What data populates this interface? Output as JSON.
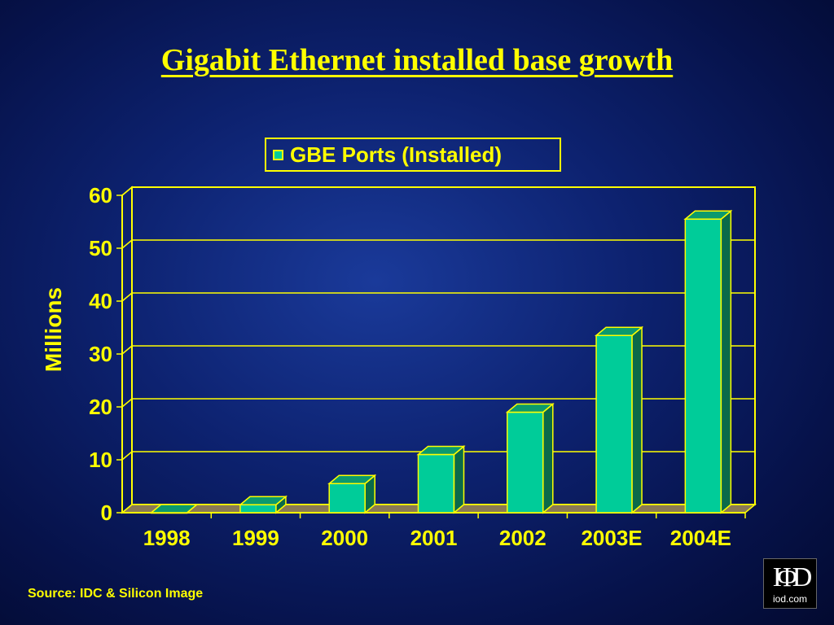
{
  "slide": {
    "title": "Gigabit Ethernet installed base growth",
    "source": "Source: IDC & Silicon Image",
    "logo": {
      "mark": "IΦD",
      "text": "iod.com"
    }
  },
  "colors": {
    "text": "#ffff00",
    "bar_front": "#00cc99",
    "bar_side": "#0a6a4a",
    "bar_top": "#0b9a6e",
    "floor": "#8a7a55",
    "background": "#0d2270"
  },
  "chart_data": {
    "type": "bar",
    "title": "",
    "ylabel": "Millions",
    "xlabel": "",
    "categories": [
      "1998",
      "1999",
      "2000",
      "2001",
      "2002",
      "2003E",
      "2004E"
    ],
    "series": [
      {
        "name": "GBE Ports (Installed)",
        "values": [
          0,
          1.5,
          5.5,
          11,
          19,
          33.5,
          55.5
        ]
      }
    ],
    "ylim": [
      0,
      60
    ],
    "yticks": [
      "0",
      "10",
      "20",
      "30",
      "40",
      "50",
      "60"
    ],
    "grid": true,
    "legend": "top-center"
  }
}
